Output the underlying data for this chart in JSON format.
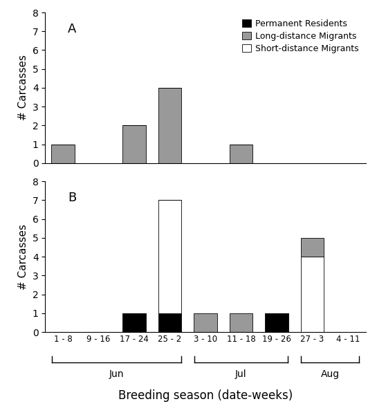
{
  "x_labels": [
    "1 - 8",
    "9 - 16",
    "17 - 24",
    "25 - 2",
    "3 - 10",
    "11 - 18",
    "19 - 26",
    "27 - 3",
    "4 - 11"
  ],
  "panel_A": {
    "permanent_residents": [
      0,
      0,
      0,
      0,
      0,
      0,
      0,
      0,
      0
    ],
    "long_distance_migrants": [
      1,
      0,
      2,
      4,
      0,
      1,
      0,
      0,
      0
    ],
    "short_distance_migrants": [
      0,
      0,
      0,
      0,
      0,
      0,
      0,
      0,
      0
    ],
    "ylim": [
      0,
      8
    ],
    "yticks": [
      0,
      1,
      2,
      3,
      4,
      5,
      6,
      7,
      8
    ],
    "label": "A"
  },
  "panel_B": {
    "permanent_residents": [
      0,
      0,
      1,
      1,
      0,
      0,
      1,
      0,
      0
    ],
    "long_distance_migrants": [
      0,
      0,
      0,
      0,
      1,
      1,
      0,
      1,
      0
    ],
    "short_distance_migrants": [
      0,
      0,
      0,
      6,
      0,
      0,
      0,
      4,
      0
    ],
    "ylim": [
      0,
      8
    ],
    "yticks": [
      0,
      1,
      2,
      3,
      4,
      5,
      6,
      7,
      8
    ],
    "label": "B"
  },
  "colors": {
    "permanent_residents": "#000000",
    "long_distance_migrants": "#999999",
    "short_distance_migrants": "#ffffff"
  },
  "legend_labels": [
    "Permanent Residents",
    "Long-distance Migrants",
    "Short-distance Migrants"
  ],
  "ylabel": "# Carcasses",
  "xlabel": "Breeding season (date-weeks)",
  "bar_width": 0.65,
  "background_color": "#ffffff"
}
